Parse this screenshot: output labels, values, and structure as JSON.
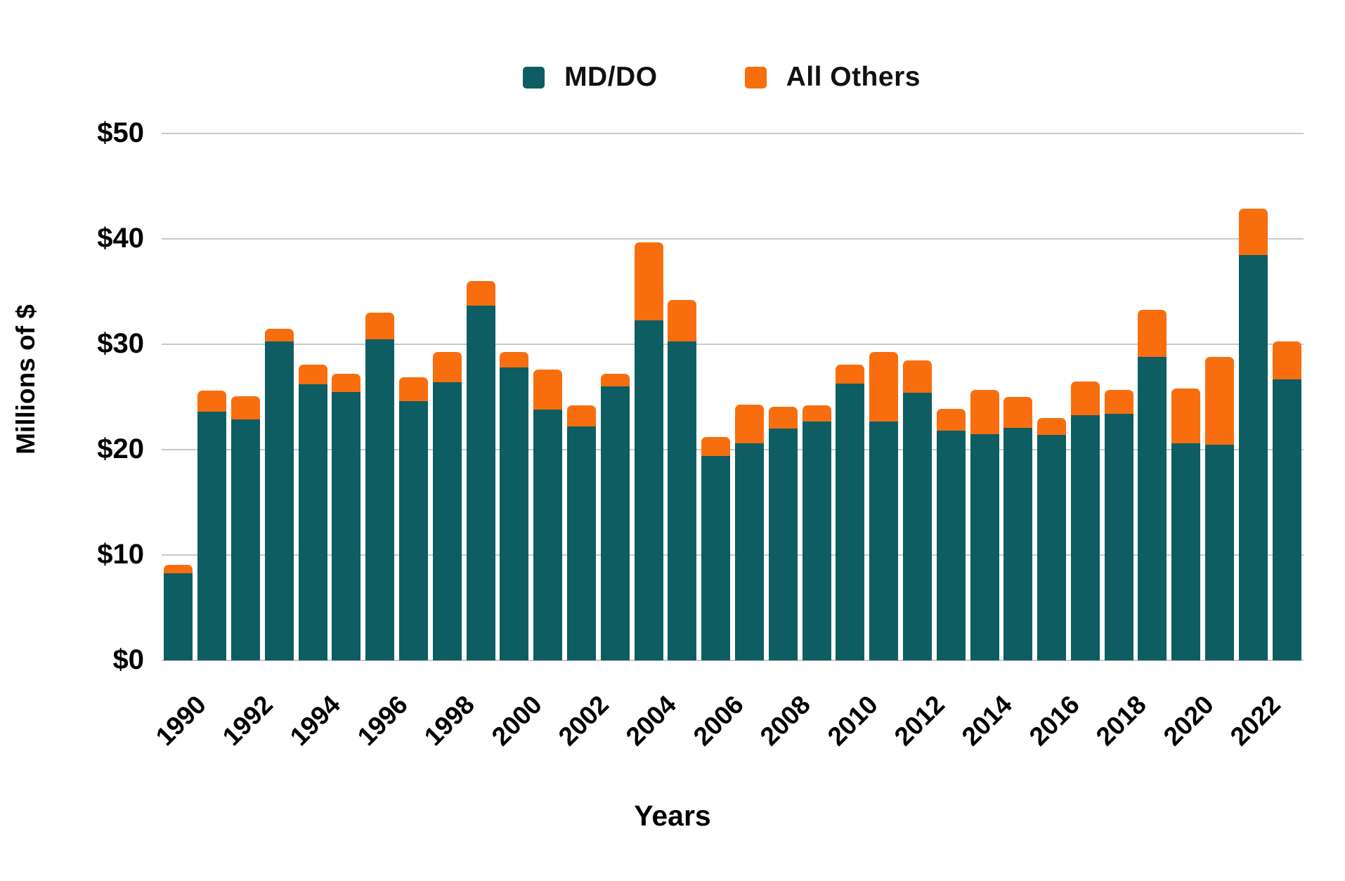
{
  "colors": {
    "mddo": "#0D5D63",
    "others": "#F86E0E",
    "gridline": "#C9C9C9",
    "text": "#000000",
    "background": "#FFFFFF"
  },
  "legend": {
    "items": [
      {
        "label": "MD/DO",
        "color": "#0D5D63"
      },
      {
        "label": "All Others",
        "color": "#F86E0E"
      }
    ]
  },
  "y_axis": {
    "title": "Millions of $",
    "ticks": [
      {
        "label": "$0",
        "value": 0
      },
      {
        "label": "$10",
        "value": 10
      },
      {
        "label": "$20",
        "value": 20
      },
      {
        "label": "$30",
        "value": 30
      },
      {
        "label": "$40",
        "value": 40
      },
      {
        "label": "$50",
        "value": 50
      }
    ]
  },
  "x_axis": {
    "title": "Years",
    "tick_labels": [
      "1990",
      "1992",
      "1994",
      "1996",
      "1998",
      "2000",
      "2002",
      "2004",
      "2006",
      "2008",
      "2010",
      "2012",
      "2014",
      "2016",
      "2018",
      "2020",
      "2022"
    ]
  },
  "chart_data": {
    "type": "bar",
    "stacked": true,
    "title": "",
    "xlabel": "Years",
    "ylabel": "Millions of $",
    "ylim": [
      0,
      50
    ],
    "y_ticks": [
      0,
      10,
      20,
      30,
      40,
      50
    ],
    "grid": true,
    "legend_position": "top",
    "categories": [
      1990,
      1991,
      1992,
      1993,
      1994,
      1995,
      1996,
      1997,
      1998,
      1999,
      2000,
      2001,
      2002,
      2003,
      2004,
      2005,
      2006,
      2007,
      2008,
      2009,
      2010,
      2011,
      2012,
      2013,
      2014,
      2015,
      2016,
      2017,
      2018,
      2019,
      2020,
      2021,
      2022,
      2023
    ],
    "series": [
      {
        "name": "MD/DO",
        "color": "#0D5D63",
        "values": [
          8.3,
          23.6,
          22.9,
          30.3,
          26.2,
          25.5,
          30.5,
          24.6,
          26.4,
          33.7,
          27.8,
          23.8,
          22.2,
          26.0,
          32.3,
          30.3,
          19.4,
          20.6,
          22.0,
          22.7,
          26.3,
          22.7,
          25.4,
          21.8,
          21.5,
          22.1,
          21.4,
          23.3,
          23.4,
          28.8,
          20.6,
          20.5,
          38.5,
          26.7
        ]
      },
      {
        "name": "All Others",
        "color": "#F86E0E",
        "values": [
          0.8,
          2.0,
          2.2,
          1.2,
          1.9,
          1.7,
          2.5,
          2.3,
          2.9,
          2.3,
          1.5,
          3.8,
          2.0,
          1.2,
          7.4,
          3.9,
          1.8,
          3.7,
          2.1,
          1.5,
          1.8,
          6.6,
          3.1,
          2.1,
          4.2,
          2.9,
          1.6,
          3.2,
          2.3,
          4.5,
          5.2,
          8.3,
          4.4,
          3.6
        ]
      }
    ]
  }
}
